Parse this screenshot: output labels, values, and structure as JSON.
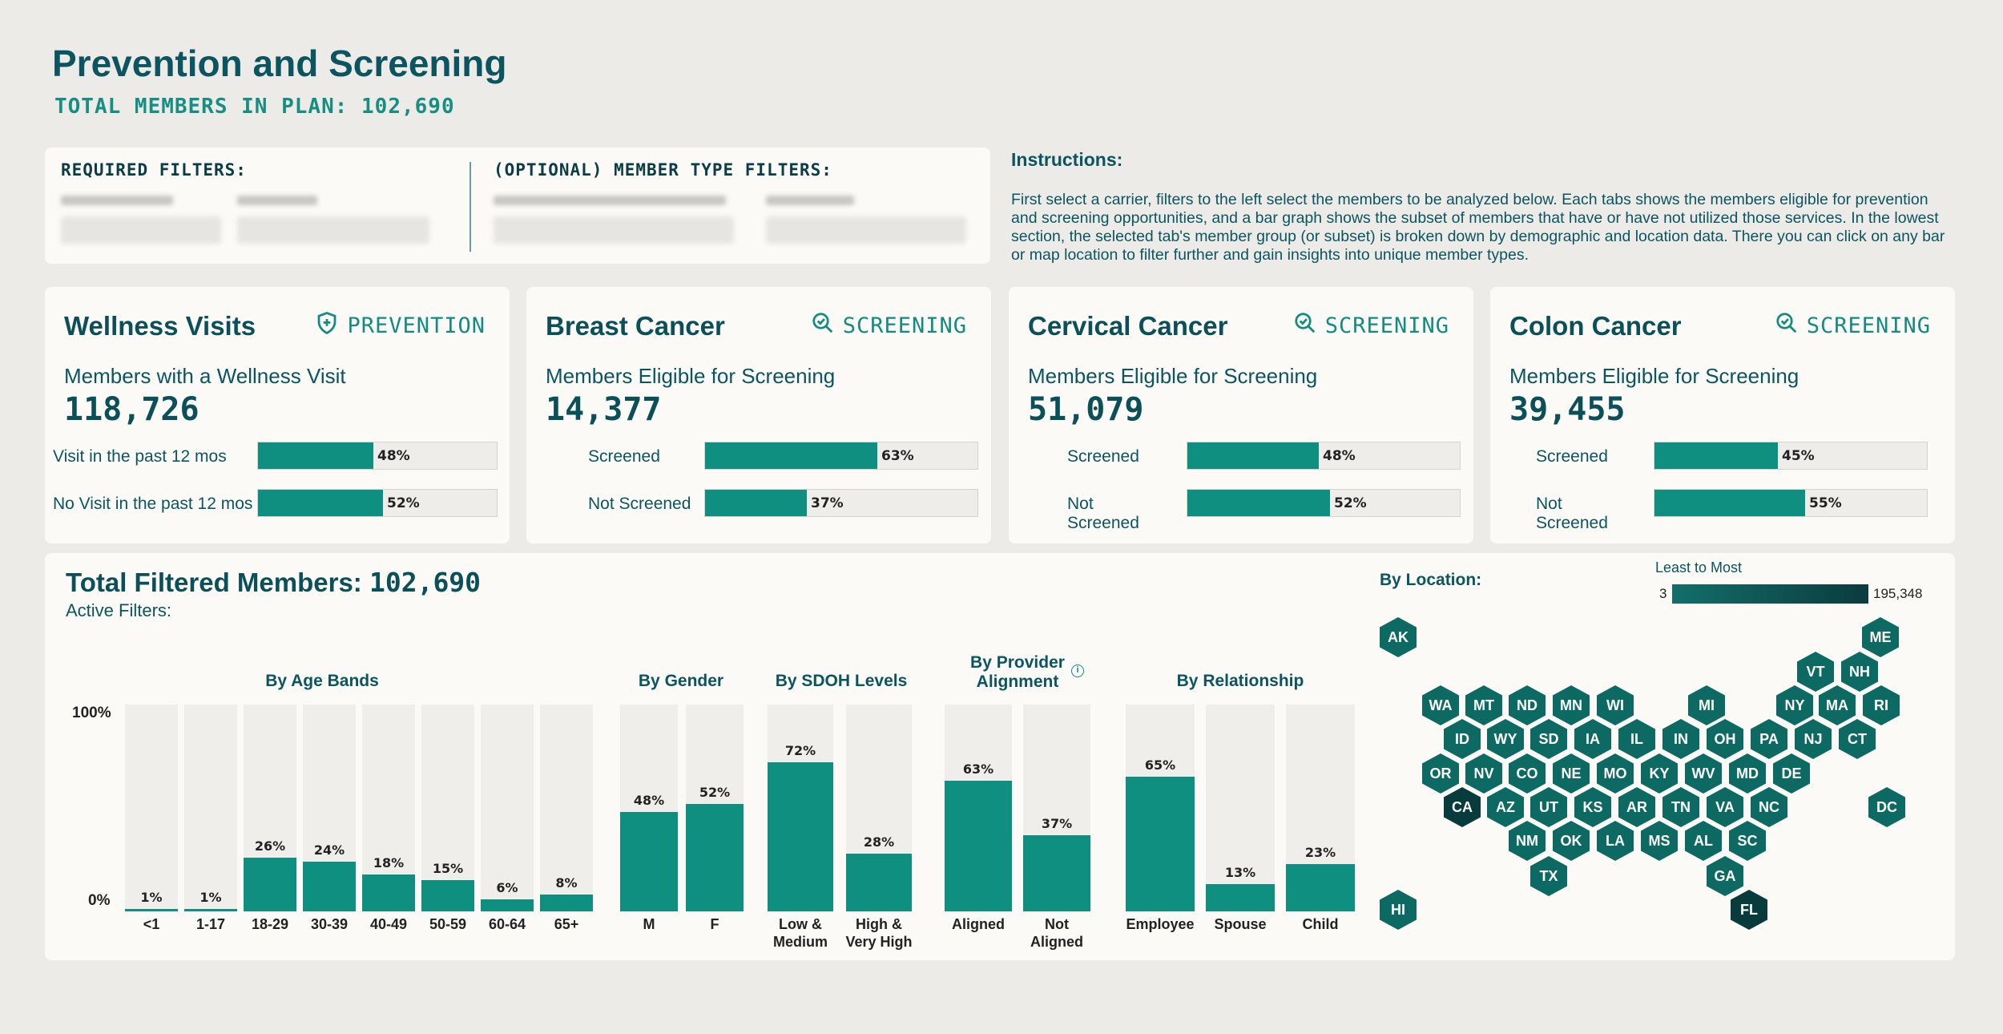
{
  "header": {
    "title": "Prevention and Screening",
    "total_members": "TOTAL MEMBERS IN PLAN: 102,690"
  },
  "filters": {
    "required_label": "REQUIRED FILTERS:",
    "optional_label": "(OPTIONAL) MEMBER TYPE FILTERS:"
  },
  "instructions": {
    "title": "Instructions:",
    "body": "First select a carrier, filters to the left select the members to be analyzed below. Each tabs shows the members eligible for prevention and screening opportunities, and a bar graph shows the subset of members that have or have not utilized those services. In the lowest section, the selected tab's member group (or subset) is broken down by demographic and location data. There you can click on any bar or map location to filter further and gain insights into unique member types."
  },
  "cards": [
    {
      "title": "Wellness Visits",
      "tag": "PREVENTION",
      "tag_icon": "shield-plus-icon",
      "metric_label": "Members with a Wellness Visit",
      "metric": "118,726",
      "rows": [
        {
          "label": "Visit in the past 12 mos",
          "pct": 48,
          "pct_label": "48%"
        },
        {
          "label": "No Visit in the past 12 mos",
          "pct": 52,
          "pct_label": "52%"
        }
      ]
    },
    {
      "title": "Breast Cancer",
      "tag": "SCREENING",
      "tag_icon": "magnifier-check-icon",
      "metric_label": "Members Eligible for Screening",
      "metric": "14,377",
      "rows": [
        {
          "label": "Screened",
          "pct": 63,
          "pct_label": "63%"
        },
        {
          "label": "Not Screened",
          "pct": 37,
          "pct_label": "37%"
        }
      ]
    },
    {
      "title": "Cervical Cancer",
      "tag": "SCREENING",
      "tag_icon": "magnifier-check-icon",
      "metric_label": "Members Eligible for Screening",
      "metric": "51,079",
      "rows": [
        {
          "label": "Screened",
          "pct": 48,
          "pct_label": "48%"
        },
        {
          "label": "Not Screened",
          "pct": 52,
          "pct_label": "52%"
        }
      ]
    },
    {
      "title": "Colon Cancer",
      "tag": "SCREENING",
      "tag_icon": "magnifier-check-icon",
      "metric_label": "Members Eligible for Screening",
      "metric": "39,455",
      "rows": [
        {
          "label": "Screened",
          "pct": 45,
          "pct_label": "45%"
        },
        {
          "label": "Not Screened",
          "pct": 55,
          "pct_label": "55%"
        }
      ]
    }
  ],
  "filtered": {
    "title": "Total Filtered Members:",
    "value": "102,690",
    "active_filters": "Active Filters:",
    "axis_top": "100%",
    "axis_bottom": "0%"
  },
  "chart_data": {
    "type": "bar",
    "ylim": [
      0,
      100
    ],
    "groups": [
      {
        "title": "By Age Bands",
        "categories": [
          "<1",
          "1-17",
          "18-29",
          "30-39",
          "40-49",
          "50-59",
          "60-64",
          "65+"
        ],
        "values": [
          1,
          1,
          26,
          24,
          18,
          15,
          6,
          8
        ],
        "labels": [
          "1%",
          "1%",
          "26%",
          "24%",
          "18%",
          "15%",
          "6%",
          "8%"
        ]
      },
      {
        "title": "By Gender",
        "categories": [
          "M",
          "F"
        ],
        "values": [
          48,
          52
        ],
        "labels": [
          "48%",
          "52%"
        ]
      },
      {
        "title": "By SDOH Levels",
        "categories": [
          "Low & Medium",
          "High & Very High"
        ],
        "values": [
          72,
          28
        ],
        "labels": [
          "72%",
          "28%"
        ]
      },
      {
        "title": "By Provider Alignment",
        "categories": [
          "Aligned",
          "Not Aligned"
        ],
        "values": [
          63,
          37
        ],
        "labels": [
          "63%",
          "37%"
        ]
      },
      {
        "title": "By Relationship",
        "categories": [
          "Employee",
          "Spouse",
          "Child"
        ],
        "values": [
          65,
          13,
          23
        ],
        "labels": [
          "65%",
          "13%",
          "23%"
        ]
      }
    ]
  },
  "location": {
    "title": "By Location:",
    "legend_title": "Least to Most",
    "legend_min": "3",
    "legend_max": "195,348",
    "states": [
      "AK",
      "ME",
      "VT",
      "NH",
      "WA",
      "MT",
      "ND",
      "MN",
      "WI",
      "MI",
      "NY",
      "MA",
      "RI",
      "ID",
      "WY",
      "SD",
      "IA",
      "IL",
      "IN",
      "OH",
      "PA",
      "NJ",
      "CT",
      "OR",
      "NV",
      "CO",
      "NE",
      "MO",
      "KY",
      "WV",
      "MD",
      "DE",
      "CA",
      "AZ",
      "UT",
      "KS",
      "AR",
      "TN",
      "VA",
      "NC",
      "DC",
      "NM",
      "OK",
      "LA",
      "MS",
      "AL",
      "SC",
      "TX",
      "GA",
      "HI",
      "FL"
    ],
    "colors": {
      "base": "#0d6a63",
      "dark": "#083c3c"
    }
  }
}
